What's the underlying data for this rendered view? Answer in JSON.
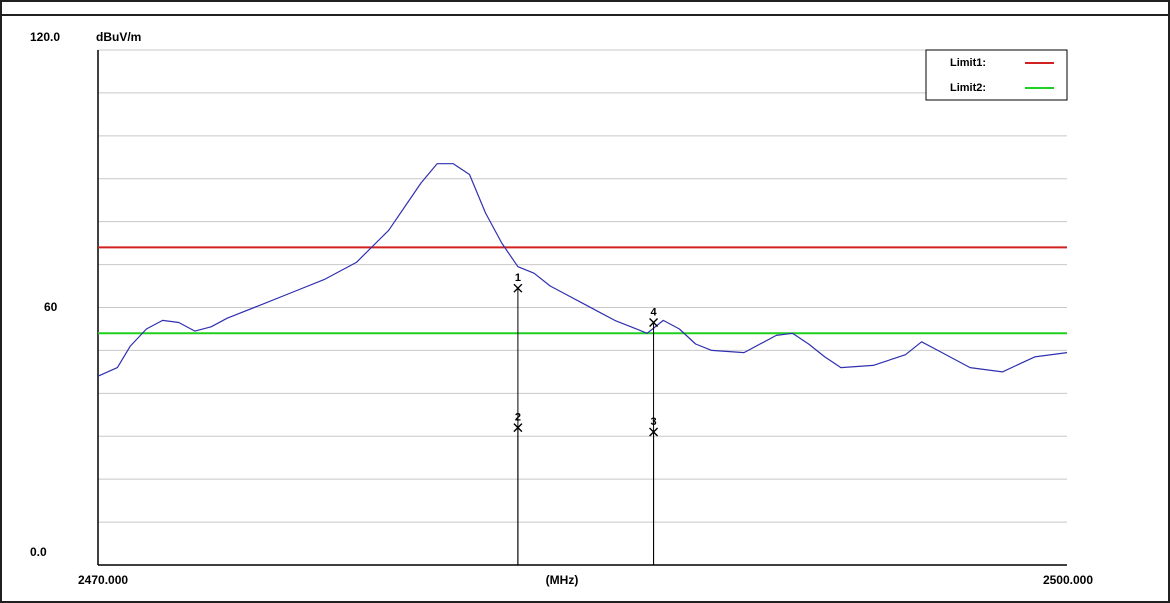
{
  "chart_data": {
    "type": "line",
    "title": "",
    "xlabel": "(MHz)",
    "ylabel": "dBuV/m",
    "xlim": [
      2470.0,
      2500.0
    ],
    "ylim": [
      0.0,
      120.0
    ],
    "x_tick_labels": [
      "2470.000",
      "2500.000"
    ],
    "y_tick_labels": [
      "0.0",
      "60",
      "120.0"
    ],
    "grid": true,
    "legend_position": "top-right",
    "limits": [
      {
        "name": "Limit1:",
        "value": 74.0,
        "color": "#d02020"
      },
      {
        "name": "Limit2:",
        "value": 54.0,
        "color": "#20d020"
      }
    ],
    "series": [
      {
        "color": "#3030b0",
        "x": [
          2470.0,
          2470.6,
          2471.0,
          2471.5,
          2472.0,
          2472.5,
          2473.0,
          2473.5,
          2474.0,
          2475.0,
          2476.0,
          2477.0,
          2478.0,
          2479.0,
          2480.0,
          2480.5,
          2481.0,
          2481.5,
          2482.0,
          2482.5,
          2483.0,
          2483.5,
          2484.0,
          2484.5,
          2485.0,
          2485.5,
          2486.0,
          2486.5,
          2487.0,
          2487.5,
          2488.0,
          2488.5,
          2489.0,
          2490.0,
          2491.0,
          2491.5,
          2492.0,
          2492.5,
          2493.0,
          2494.0,
          2495.0,
          2495.5,
          2496.0,
          2497.0,
          2498.0,
          2499.0,
          2500.0
        ],
        "values": [
          44.0,
          46.0,
          51.0,
          55.0,
          57.0,
          56.5,
          54.5,
          55.5,
          57.5,
          60.5,
          63.5,
          66.5,
          70.5,
          78.0,
          89.0,
          93.5,
          93.5,
          91.0,
          82.0,
          75.0,
          69.5,
          68.0,
          65.0,
          63.0,
          61.0,
          59.0,
          57.0,
          55.5,
          54.0,
          57.0,
          55.0,
          51.5,
          50.0,
          49.5,
          53.5,
          54.0,
          51.5,
          48.5,
          46.0,
          46.5,
          49.0,
          52.0,
          50.0,
          46.0,
          45.0,
          48.5,
          49.5
        ]
      }
    ],
    "markers": [
      {
        "label": "1",
        "x": 2483.0,
        "y": 64.5,
        "line_from": 0
      },
      {
        "label": "2",
        "x": 2483.0,
        "y": 32.0,
        "line_from": 0
      },
      {
        "label": "3",
        "x": 2487.2,
        "y": 31.0,
        "line_from": 0
      },
      {
        "label": "4",
        "x": 2487.2,
        "y": 56.5,
        "line_from": 0
      }
    ]
  }
}
